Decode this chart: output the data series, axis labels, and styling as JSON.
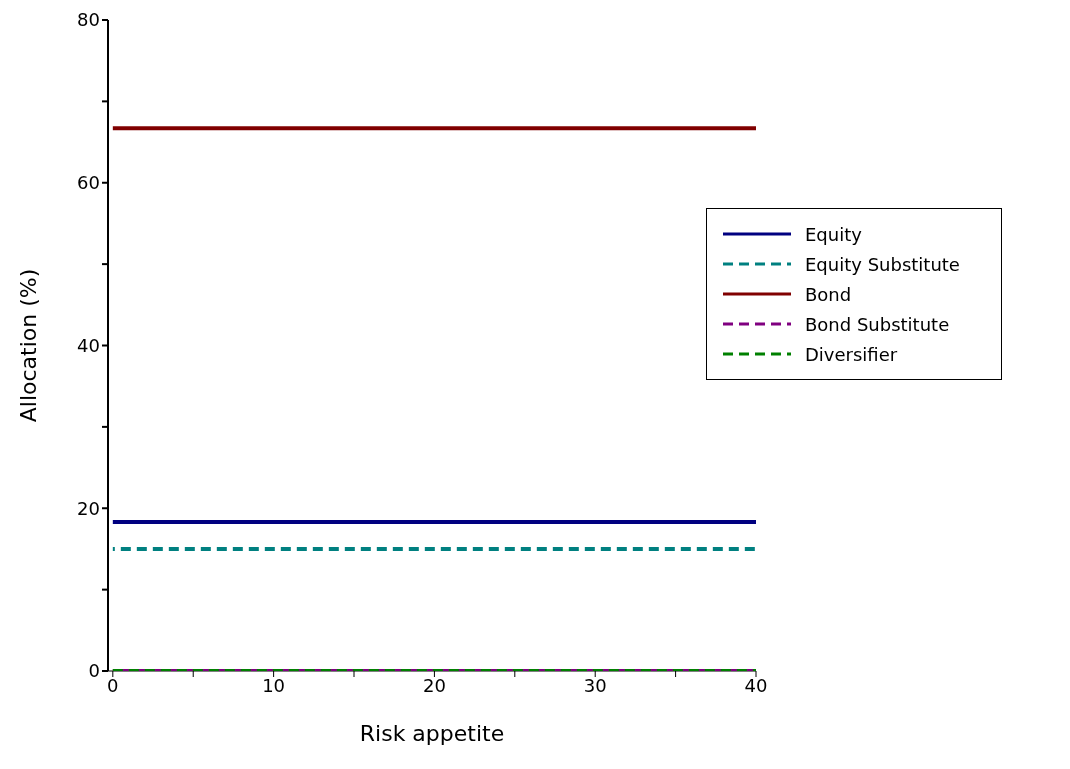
{
  "chart_data": {
    "type": "line",
    "xlabel": "Risk appetite",
    "ylabel": "Allocation (%)",
    "x": [
      0,
      40
    ],
    "xlim": [
      -0.3,
      40
    ],
    "ylim": [
      0,
      80
    ],
    "xticks": [
      0,
      {
        "value": 5,
        "label": null
      },
      10,
      {
        "value": 15,
        "label": null
      },
      20,
      {
        "value": 25,
        "label": null
      },
      30,
      {
        "value": 35,
        "label": null
      },
      40
    ],
    "yticks": [
      0,
      {
        "value": 10,
        "label": null
      },
      20,
      {
        "value": 30,
        "label": null
      },
      40,
      {
        "value": 50,
        "label": null
      },
      60,
      {
        "value": 70,
        "label": null
      },
      80
    ],
    "grid": false,
    "legend": "top right",
    "marker": "none",
    "series": [
      {
        "name": "Equity",
        "color": "#000080",
        "values": [
          18.3,
          18.3
        ],
        "line_style": "solid"
      },
      {
        "name": "Equity Substitute",
        "color": "#008080",
        "values": [
          15,
          15
        ],
        "line_style": "dashed"
      },
      {
        "name": "Bond",
        "color": "#800000",
        "values": [
          66.7,
          66.7
        ],
        "line_style": "solid"
      },
      {
        "name": "Bond Substitute",
        "color": "#800080",
        "values": [
          0,
          0
        ],
        "line_style": "dashed"
      },
      {
        "name": "Diversifier",
        "color": "#008000",
        "values": [
          0,
          0
        ],
        "line_style": "dashed"
      }
    ]
  }
}
